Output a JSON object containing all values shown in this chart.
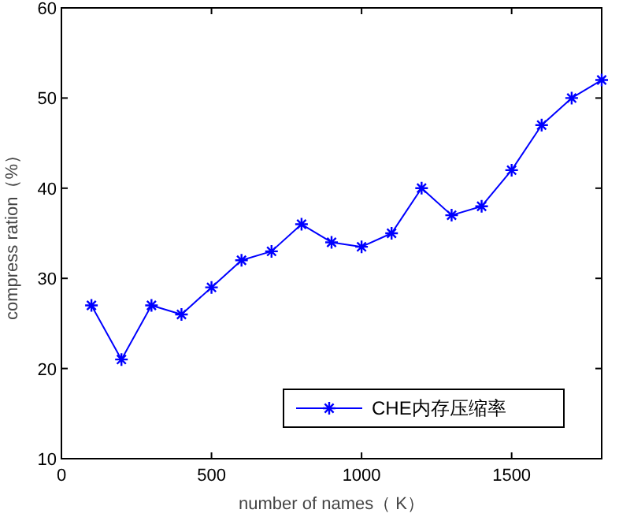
{
  "chart_data": {
    "type": "line",
    "xlabel": "number of names（ K）",
    "ylabel": "compress ration（%）",
    "x": [
      100,
      200,
      300,
      400,
      500,
      600,
      700,
      800,
      900,
      1000,
      1100,
      1200,
      1300,
      1400,
      1500,
      1600,
      1700,
      1800
    ],
    "series": [
      {
        "name": "CHE内存压缩率",
        "color": "#0000ff",
        "values": [
          27,
          21,
          27,
          26,
          29,
          32,
          33,
          36,
          34,
          33.5,
          35,
          40,
          37,
          38,
          42,
          47,
          50,
          52
        ]
      }
    ],
    "xlim": [
      0,
      1800
    ],
    "xticks": [
      0,
      500,
      1000,
      1500
    ],
    "ylim": [
      10,
      60
    ],
    "yticks": [
      10,
      20,
      30,
      40,
      50,
      60
    ],
    "grid": false,
    "legend": "bottom right",
    "marker": "cross",
    "line_style": "solid"
  }
}
